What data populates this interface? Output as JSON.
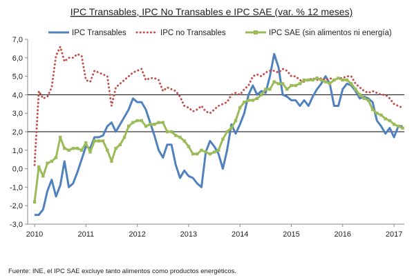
{
  "chart_data": {
    "type": "line",
    "title": "IPC Transables, IPC No Transables  e IPC SAE (var. % 12 meses)",
    "footnote": "Fuente: INE, el IPC SAE excluye tanto alimentos como productos energéticos.",
    "xlabel": "",
    "ylabel": "",
    "ylim": [
      -3,
      7
    ],
    "y_ticks": [
      "-3,0",
      "-2,0",
      "-1,0",
      "0,0",
      "1,0",
      "2,0",
      "3,0",
      "4,0",
      "5,0",
      "6,0",
      "7,0"
    ],
    "x_ticks": [
      "2010",
      "2011",
      "2012",
      "2013",
      "2014",
      "2015",
      "2016",
      "2017"
    ],
    "x_start": "2010-01",
    "x_end": "2017-03",
    "reference_lines": [
      2,
      4
    ],
    "grid": false,
    "legend_position": "top",
    "series": [
      {
        "name": "IPC Transables",
        "color": "#4f81bd",
        "style": "solid",
        "values": [
          -2.5,
          -2.5,
          -2.2,
          -1.2,
          -0.6,
          -1.5,
          -0.9,
          0.4,
          -1.0,
          -0.8,
          -0.2,
          0.5,
          1.2,
          1.1,
          1.7,
          1.7,
          1.8,
          2.3,
          2.5,
          2.0,
          2.4,
          2.8,
          3.2,
          3.8,
          3.6,
          3.6,
          3.2,
          2.5,
          1.8,
          1.0,
          0.6,
          1.3,
          1.3,
          0.2,
          -0.5,
          -0.1,
          -0.4,
          -0.5,
          -0.8,
          -1.0,
          0.9,
          1.5,
          1.2,
          0.8,
          0.0,
          1.0,
          2.4,
          1.9,
          2.4,
          3.0,
          4.0,
          4.5,
          4.0,
          4.2,
          4.1,
          5.0,
          6.2,
          5.5,
          4.0,
          3.9,
          3.7,
          3.7,
          3.4,
          3.7,
          3.4,
          3.9,
          4.3,
          4.6,
          5.0,
          4.6,
          3.4,
          3.4,
          4.3,
          4.6,
          4.5,
          4.2,
          3.8,
          3.9,
          3.8,
          3.6,
          2.6,
          2.3,
          1.9,
          2.2,
          1.7,
          2.3,
          2.3
        ]
      },
      {
        "name": "IPC no Transables",
        "color": "#c0504d",
        "style": "dotted",
        "values": [
          0.2,
          4.2,
          3.8,
          3.9,
          4.4,
          6.1,
          6.6,
          5.8,
          6.0,
          6.0,
          6.2,
          6.1,
          4.8,
          4.7,
          5.3,
          5.2,
          5.1,
          5.0,
          3.4,
          4.4,
          4.6,
          4.8,
          5.0,
          5.2,
          5.3,
          5.4,
          4.8,
          4.9,
          4.9,
          4.8,
          4.2,
          4.4,
          4.3,
          4.2,
          3.9,
          3.4,
          3.3,
          3.1,
          3.2,
          3.4,
          3.1,
          3.0,
          3.2,
          3.4,
          3.5,
          3.6,
          4.0,
          4.1,
          4.0,
          4.3,
          4.5,
          5.0,
          5.1,
          5.0,
          5.2,
          5.3,
          5.3,
          5.2,
          5.4,
          5.3,
          5.0,
          5.0,
          4.8,
          4.7,
          4.8,
          4.9,
          4.8,
          4.9,
          4.8,
          4.9,
          4.8,
          4.9,
          4.9,
          5.0,
          5.0,
          4.6,
          4.4,
          4.2,
          4.1,
          4.2,
          4.1,
          4.0,
          4.0,
          3.8,
          3.5,
          3.4,
          3.3
        ]
      },
      {
        "name": "IPC SAE (sin alimentos  ni energía)",
        "color": "#9bbb59",
        "style": "solid-square-markers",
        "values": [
          -1.8,
          0.1,
          -0.4,
          0.3,
          0.4,
          0.6,
          1.7,
          1.1,
          1.0,
          1.1,
          1.1,
          1.0,
          1.4,
          0.9,
          1.5,
          1.5,
          1.5,
          1.0,
          0.4,
          1.1,
          1.3,
          1.7,
          2.3,
          2.5,
          2.6,
          2.6,
          2.3,
          2.4,
          2.4,
          2.5,
          2.5,
          2.0,
          2.0,
          1.8,
          1.7,
          1.5,
          1.2,
          0.8,
          0.8,
          1.0,
          0.9,
          0.8,
          0.9,
          1.0,
          1.6,
          2.0,
          2.2,
          2.6,
          3.3,
          3.6,
          3.7,
          3.7,
          3.8,
          4.0,
          4.3,
          4.3,
          4.7,
          4.6,
          4.6,
          4.3,
          4.5,
          4.5,
          4.6,
          4.8,
          4.8,
          4.8,
          4.9,
          4.8,
          4.7,
          4.6,
          4.8,
          4.9,
          4.8,
          4.8,
          4.6,
          4.3,
          4.0,
          3.8,
          3.7,
          3.2,
          3.0,
          2.9,
          2.7,
          2.6,
          2.4,
          2.3,
          2.2
        ]
      }
    ]
  }
}
